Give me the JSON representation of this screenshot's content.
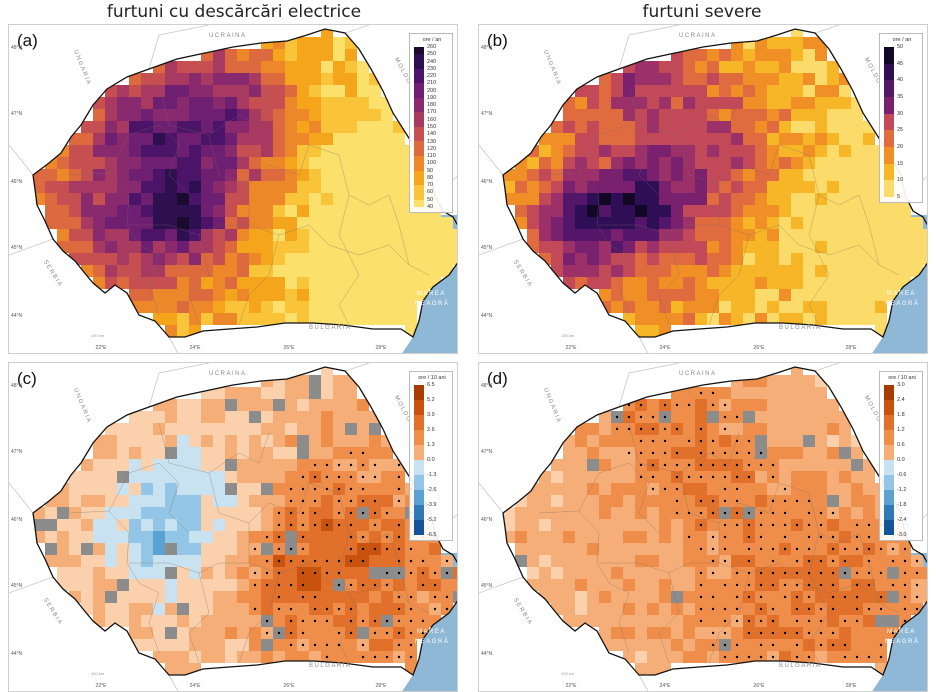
{
  "column_titles": [
    "furtuni cu descărcări electrice",
    "furtuni severe"
  ],
  "panels": [
    {
      "letter": "(a)",
      "unit": "ore / an",
      "ticks": [
        "260",
        "250",
        "240",
        "230",
        "220",
        "210",
        "200",
        "190",
        "180",
        "170",
        "160",
        "150",
        "140",
        "130",
        "120",
        "110",
        "100",
        "90",
        "80",
        "70",
        "60",
        "50",
        "40"
      ]
    },
    {
      "letter": "(b)",
      "unit": "ore / an",
      "ticks": [
        "50",
        "45",
        "40",
        "35",
        "30",
        "25",
        "20",
        "15",
        "10",
        "5"
      ]
    },
    {
      "letter": "(c)",
      "unit": "ore / 10 ani",
      "ticks": [
        "6.5",
        "5.2",
        "3.9",
        "2.6",
        "1.3",
        "0.0",
        "-1.3",
        "-2.6",
        "-3.9",
        "-5.2",
        "-6.5"
      ]
    },
    {
      "letter": "(d)",
      "unit": "ore / 10 ani",
      "ticks": [
        "3.0",
        "2.4",
        "1.8",
        "1.2",
        "0.6",
        "0.0",
        "-0.6",
        "-1.2",
        "-1.8",
        "-2.4",
        "-3.0"
      ]
    }
  ],
  "latitudes": [
    "48°N",
    "47°N",
    "46°N",
    "45°N",
    "44°N"
  ],
  "longitudes": [
    "22°E",
    "24°E",
    "26°E",
    "28°E"
  ],
  "countries": {
    "ukraine": "UCRAINA",
    "moldova": "MOLDOVA",
    "hungary": "UNGARIA",
    "serbia": "SERBIA",
    "bulgaria": "BULGARIA",
    "sea1": "MAREA",
    "sea2": "NEAGRĂ"
  },
  "scale_label": "100 km",
  "colors": {
    "sea": "#8fb8d6",
    "neutral_gray": "#8c8c8c",
    "border": "#111111",
    "county_border": "#7a6a60",
    "seq_a": [
      "#1a0a2e",
      "#2e1050",
      "#4c1468",
      "#6e1f72",
      "#8a2a6e",
      "#a83a62",
      "#c64f52",
      "#dd6a3e",
      "#ec882a",
      "#f5a51c",
      "#f9c43a",
      "#fbe06c"
    ],
    "seq_b": [
      "#120826",
      "#2e0f56",
      "#531668",
      "#79206e",
      "#9c3068",
      "#c24a58",
      "#df6b3e",
      "#f08f25",
      "#f7b628",
      "#fbdc6a"
    ],
    "div": [
      "#a83c00",
      "#c9530e",
      "#e0702a",
      "#ef8e4b",
      "#f6ae78",
      "#fbd0ac",
      "#c8e2f2",
      "#93c6e6",
      "#5ba2d3",
      "#2f79b6",
      "#11549a"
    ]
  }
}
